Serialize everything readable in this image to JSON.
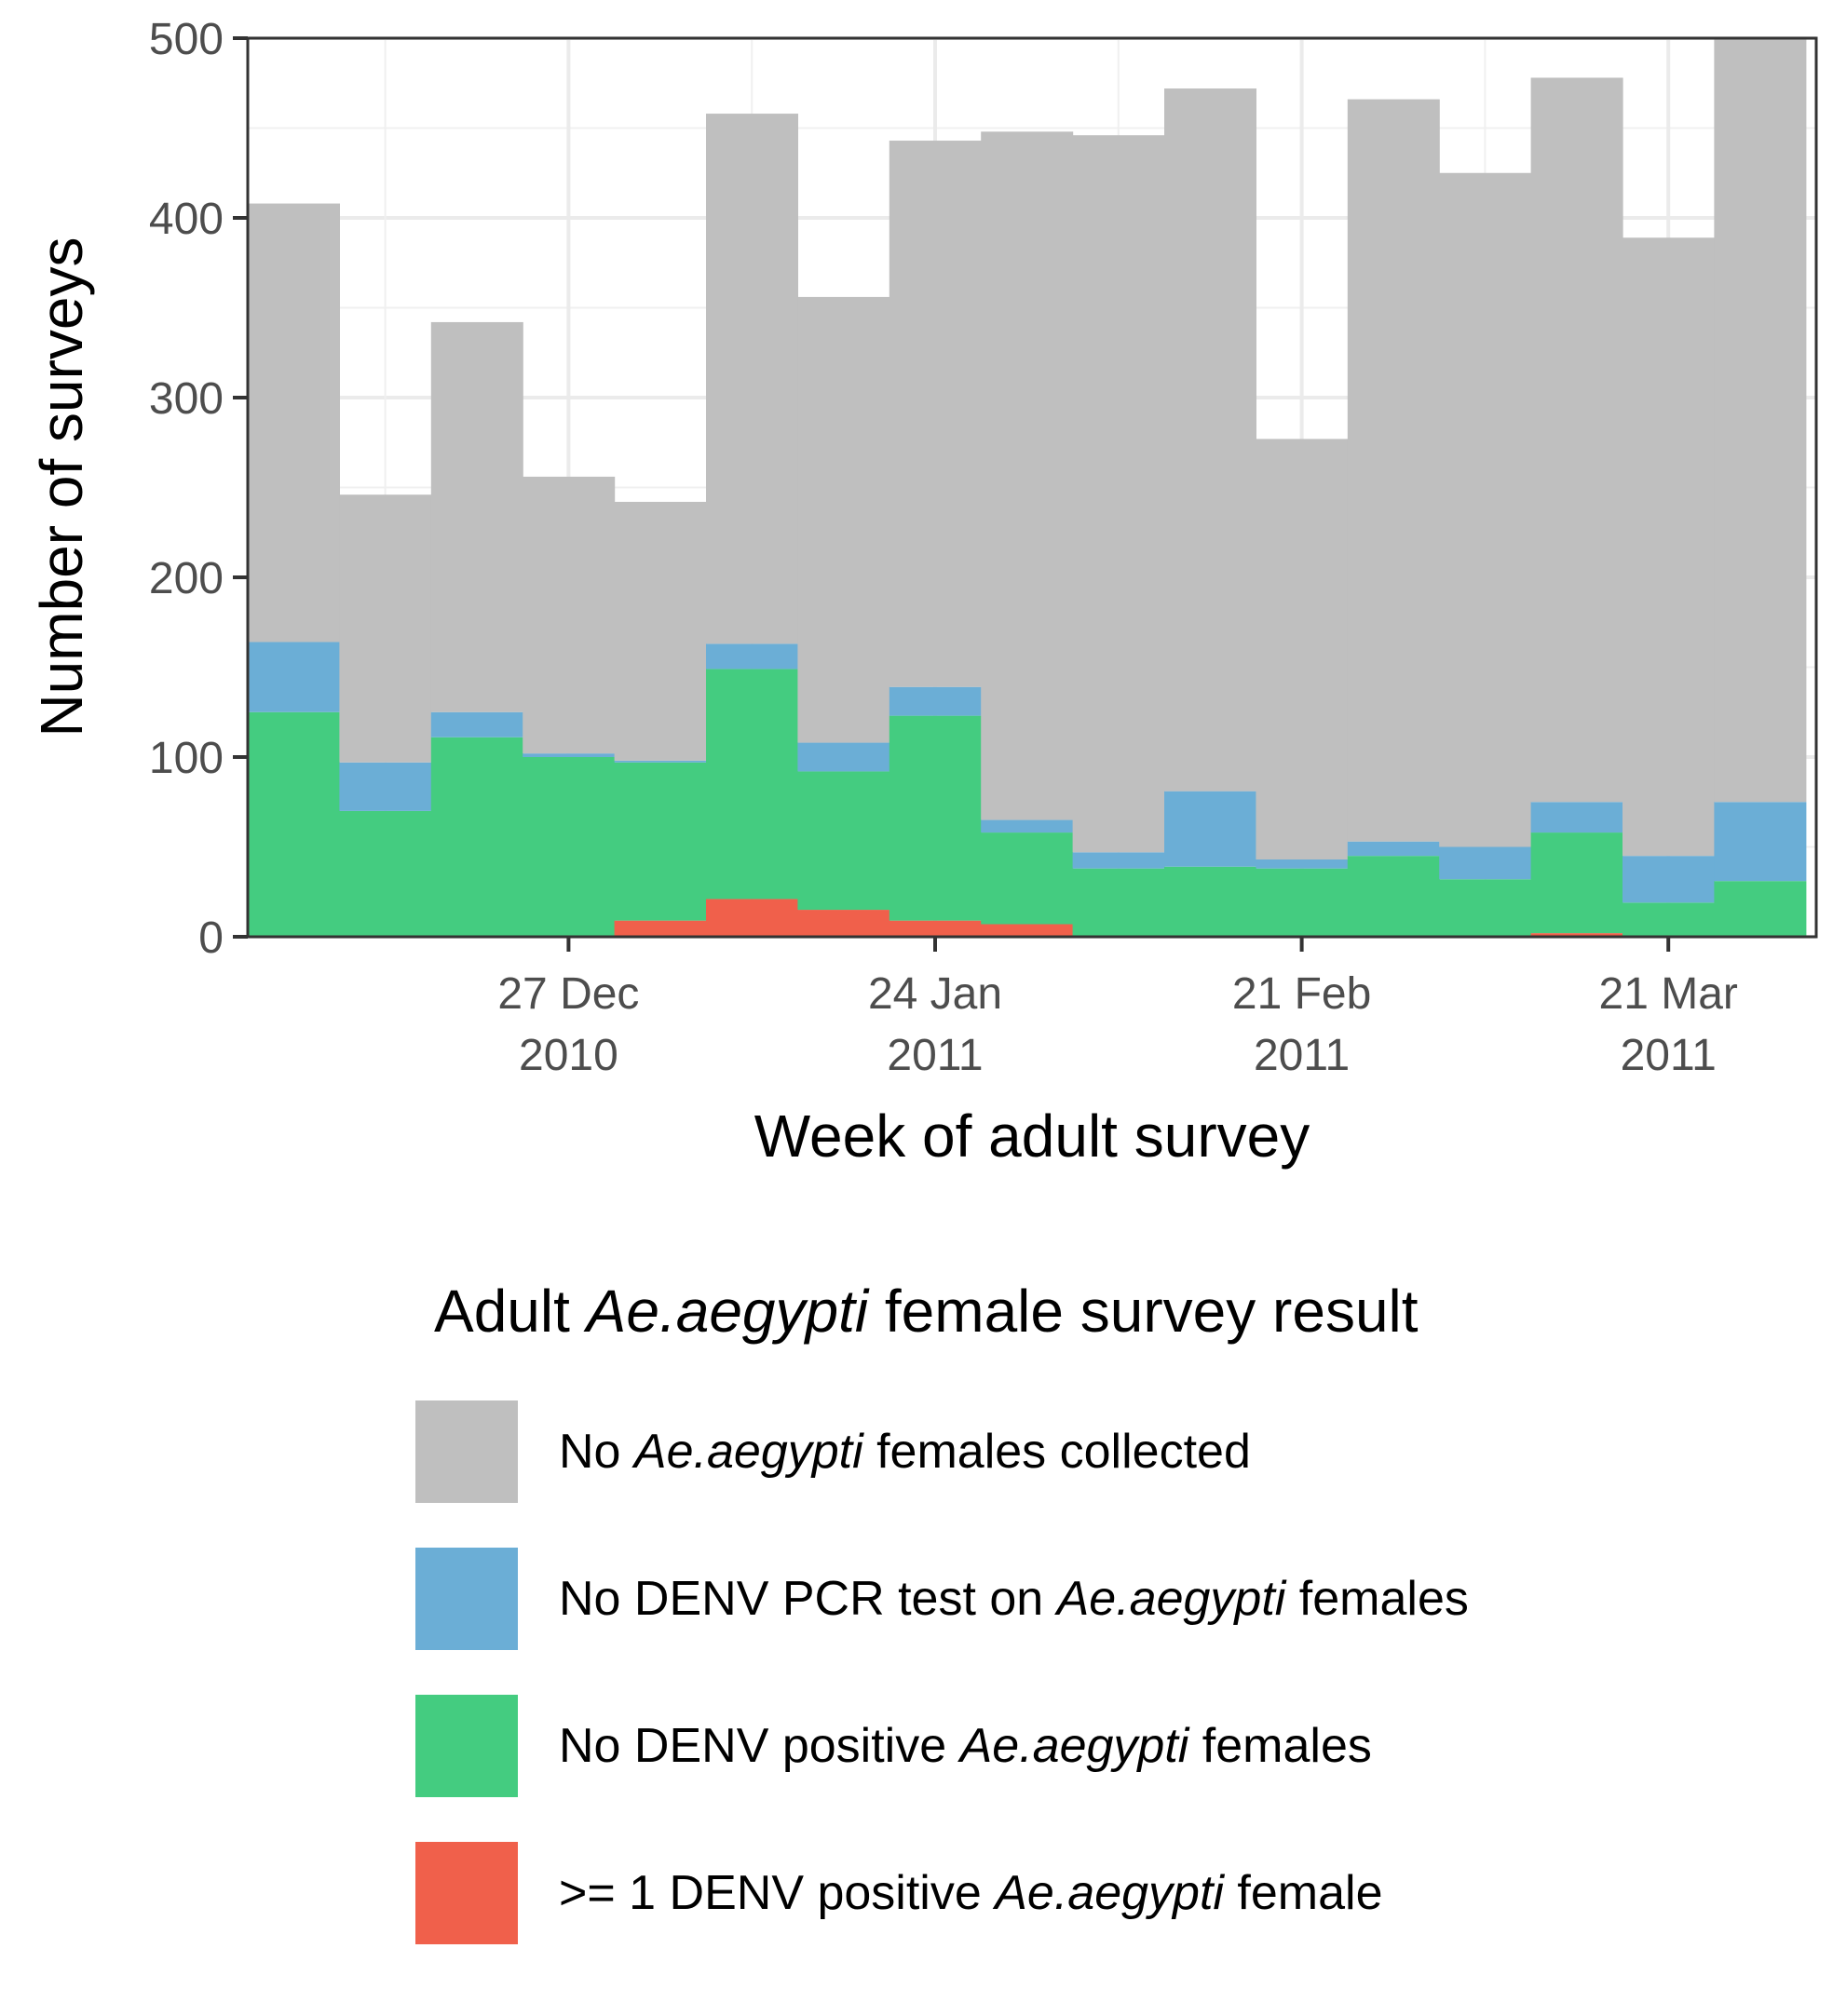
{
  "chart_data": {
    "type": "bar",
    "stacked": true,
    "x_axis_type": "date-week",
    "categories": [
      "2010-12-06",
      "2010-12-13",
      "2010-12-20",
      "2010-12-27",
      "2011-01-03",
      "2011-01-10",
      "2011-01-17",
      "2011-01-24",
      "2011-01-31",
      "2011-02-07",
      "2011-02-14",
      "2011-02-21",
      "2011-02-28",
      "2011-03-07",
      "2011-03-14",
      "2011-03-21",
      "2011-03-28"
    ],
    "series": [
      {
        "name": ">= 1 DENV positive Ae.aegypti female",
        "color": "#F0604B",
        "values": [
          0,
          0,
          0,
          0,
          9,
          21,
          15,
          9,
          7,
          0,
          0,
          0,
          0,
          0,
          2,
          0,
          0
        ]
      },
      {
        "name": "No DENV positive Ae.aegypti females",
        "color": "#44CC80",
        "values": [
          125,
          70,
          111,
          100,
          88,
          128,
          77,
          114,
          51,
          38,
          39,
          38,
          45,
          32,
          56,
          19,
          31
        ]
      },
      {
        "name": "No DENV PCR test on Ae.aegypti females",
        "color": "#6BAED6",
        "values": [
          39,
          27,
          14,
          2,
          1,
          14,
          16,
          16,
          7,
          9,
          42,
          5,
          8,
          18,
          17,
          26,
          44
        ]
      },
      {
        "name": "No Ae.aegypti females collected",
        "color": "#BFBFBF",
        "values": [
          244,
          149,
          217,
          154,
          144,
          295,
          248,
          304,
          383,
          399,
          391,
          234,
          413,
          375,
          403,
          344,
          425
        ]
      }
    ],
    "xlabel": "Week of adult survey",
    "ylabel": "Number of surveys",
    "ylim": [
      0,
      500
    ],
    "yticks": [
      0,
      100,
      200,
      300,
      400,
      500
    ],
    "xticks": [
      {
        "date": "2010-12-27",
        "line1": "27 Dec",
        "line2": "2010"
      },
      {
        "date": "2011-01-24",
        "line1": "24 Jan",
        "line2": "2011"
      },
      {
        "date": "2011-02-21",
        "line1": "21 Feb",
        "line2": "2011"
      },
      {
        "date": "2011-03-21",
        "line1": "21 Mar",
        "line2": "2011"
      }
    ],
    "grid": true,
    "legend": {
      "position": "bottom",
      "title_parts": [
        "Adult ",
        "Ae.aegypti",
        " female survey result"
      ],
      "items": [
        {
          "color": "#BFBFBF",
          "parts": [
            "No ",
            "Ae.aegypti",
            " females collected"
          ]
        },
        {
          "color": "#6BAED6",
          "parts": [
            "No DENV PCR test on ",
            "Ae.aegypti",
            " females"
          ]
        },
        {
          "color": "#44CC80",
          "parts": [
            "No DENV positive ",
            "Ae.aegypti",
            " females"
          ]
        },
        {
          "color": "#F0604B",
          "parts": [
            ">= 1 DENV positive ",
            "Ae.aegypti",
            " female"
          ]
        }
      ]
    }
  }
}
